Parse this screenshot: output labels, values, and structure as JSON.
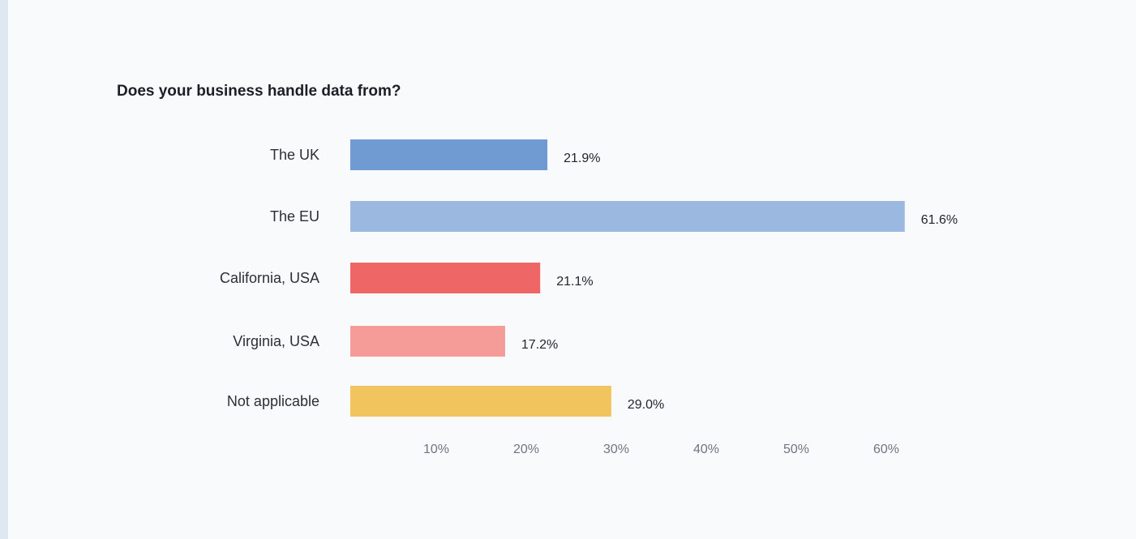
{
  "chart_data": {
    "type": "bar",
    "orientation": "horizontal",
    "title": "Does your business handle data from?",
    "categories": [
      "The UK",
      "The EU",
      "California, USA",
      "Virginia, USA",
      "Not applicable"
    ],
    "values": [
      21.9,
      61.6,
      21.1,
      17.2,
      29.0
    ],
    "value_labels": [
      "21.9%",
      "61.6%",
      "21.1%",
      "17.2%",
      "29.0%"
    ],
    "colors": [
      "#6f9ad2",
      "#9ab8e0",
      "#ee6666",
      "#f59b98",
      "#f2c45d"
    ],
    "x_ticks": [
      10,
      20,
      30,
      40,
      50,
      60
    ],
    "x_tick_labels": [
      "10%",
      "20%",
      "30%",
      "40%",
      "50%",
      "60%"
    ],
    "xlim": [
      0,
      62
    ],
    "xlabel": "",
    "ylabel": "",
    "grid": false,
    "legend": "none"
  }
}
